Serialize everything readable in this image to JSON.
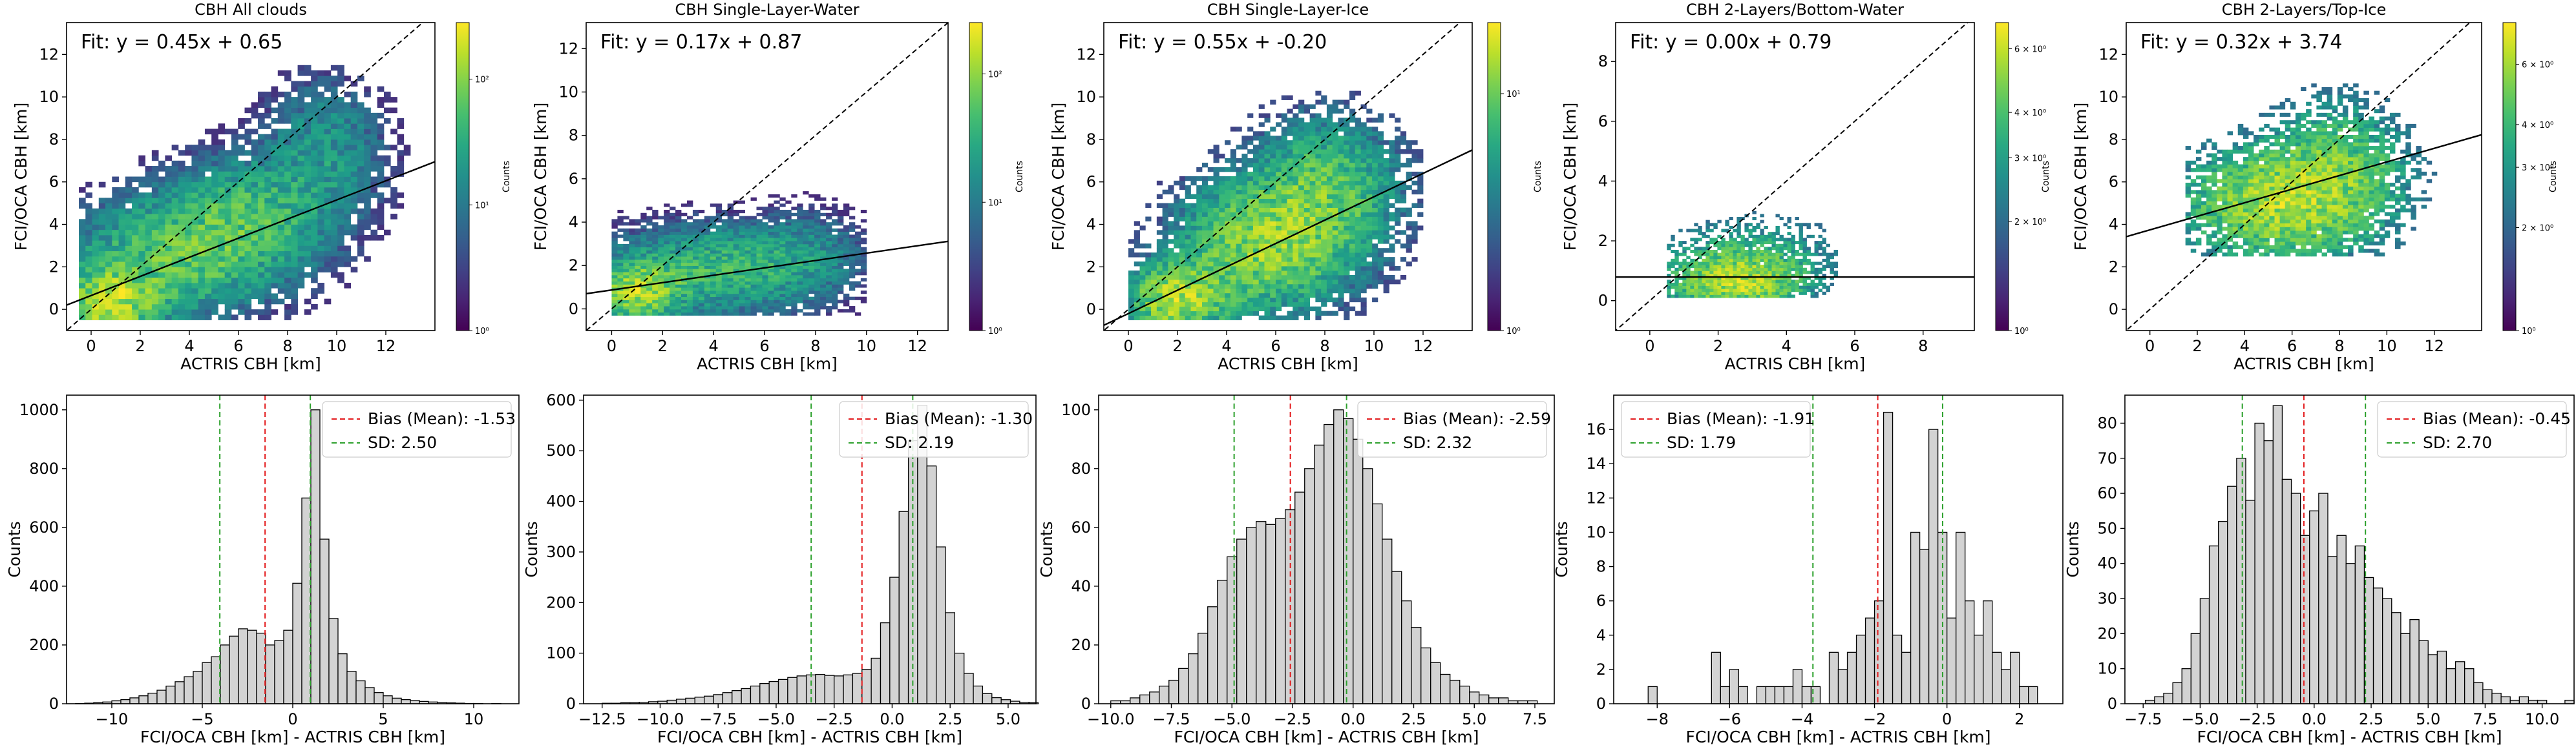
{
  "figure": {
    "background": "#ffffff"
  },
  "chart_data": [
    {
      "type": "heatmap",
      "panel": "top-1",
      "title": "CBH All clouds",
      "xlabel": "ACTRIS CBH [km]",
      "ylabel": "FCI/OCA CBH [km]",
      "xlim": [
        -1,
        14
      ],
      "ylim": [
        -1,
        13.5
      ],
      "xticks": [
        0,
        2,
        4,
        6,
        8,
        10,
        12
      ],
      "yticks": [
        0,
        2,
        4,
        6,
        8,
        10,
        12
      ],
      "fit_text": "Fit: y = 0.45x + 0.65",
      "fit": {
        "slope": 0.45,
        "intercept": 0.65
      },
      "one_to_one_line": true,
      "colorbar": {
        "label": "Counts",
        "scale": "log",
        "ticks": [
          "10⁰",
          "10¹",
          "10²"
        ],
        "log_min": 0,
        "log_max": 2.45,
        "colormap": "viridis"
      },
      "density": {
        "clusters": [
          [
            0.8,
            0.3,
            1.2,
            1.0,
            2.4
          ],
          [
            3.5,
            2.5,
            2.5,
            1.6,
            1.2
          ],
          [
            6.5,
            4.5,
            2.0,
            1.6,
            0.9
          ],
          [
            9.5,
            7.5,
            1.5,
            2.0,
            0.5
          ]
        ],
        "xrange": [
          -0.5,
          13
        ],
        "yrange": [
          -0.5,
          11.5
        ],
        "threshold": 0.012,
        "seed": 11,
        "nx": 50,
        "ny": 48
      }
    },
    {
      "type": "heatmap",
      "panel": "top-2",
      "title": "CBH Single-Layer-Water",
      "xlabel": "ACTRIS CBH [km]",
      "ylabel": "FCI/OCA CBH [km]",
      "xlim": [
        -1,
        13.2
      ],
      "ylim": [
        -1,
        13.2
      ],
      "xticks": [
        0,
        2,
        4,
        6,
        8,
        10,
        12
      ],
      "yticks": [
        0,
        2,
        4,
        6,
        8,
        10,
        12
      ],
      "fit_text": "Fit: y = 0.17x + 0.87",
      "fit": {
        "slope": 0.17,
        "intercept": 0.87
      },
      "one_to_one_line": true,
      "colorbar": {
        "label": "Counts",
        "scale": "log",
        "ticks": [
          "10⁰",
          "10¹",
          "10²"
        ],
        "log_min": 0,
        "log_max": 2.4,
        "colormap": "viridis"
      },
      "density": {
        "clusters": [
          [
            1.0,
            0.8,
            1.0,
            0.8,
            2.4
          ],
          [
            4.0,
            1.8,
            2.5,
            1.2,
            1.1
          ],
          [
            7.5,
            2.5,
            1.5,
            1.2,
            0.4
          ]
        ],
        "xrange": [
          0,
          10
        ],
        "yrange": [
          -0.3,
          6
        ],
        "threshold": 0.01,
        "seed": 23,
        "nx": 44,
        "ny": 44
      }
    },
    {
      "type": "heatmap",
      "panel": "top-3",
      "title": "CBH Single-Layer-Ice",
      "xlabel": "ACTRIS CBH [km]",
      "ylabel": "FCI/OCA CBH [km]",
      "xlim": [
        -1,
        14
      ],
      "ylim": [
        -1,
        13.5
      ],
      "xticks": [
        0,
        2,
        4,
        6,
        8,
        10,
        12
      ],
      "yticks": [
        0,
        2,
        4,
        6,
        8,
        10,
        12
      ],
      "fit_text": "Fit: y = 0.55x + -0.20",
      "fit": {
        "slope": 0.55,
        "intercept": -0.2
      },
      "one_to_one_line": true,
      "colorbar": {
        "label": "Counts",
        "scale": "log",
        "ticks": [
          "10⁰",
          "10¹"
        ],
        "log_min": 0,
        "log_max": 1.3,
        "colormap": "viridis"
      },
      "density": {
        "clusters": [
          [
            2.0,
            0.5,
            1.2,
            1.0,
            1.3
          ],
          [
            5.5,
            3.0,
            2.0,
            1.8,
            1.0
          ],
          [
            8.0,
            5.5,
            1.8,
            2.0,
            0.7
          ]
        ],
        "xrange": [
          0,
          12
        ],
        "yrange": [
          -0.5,
          10.5
        ],
        "threshold": 0.02,
        "seed": 37,
        "nx": 52,
        "ny": 52
      }
    },
    {
      "type": "heatmap",
      "panel": "top-4",
      "title": "CBH 2-Layers/Bottom-Water",
      "xlabel": "ACTRIS CBH [km]",
      "ylabel": "FCI/OCA CBH [km]",
      "xlim": [
        -1,
        9.5
      ],
      "ylim": [
        -1,
        9.3
      ],
      "xticks": [
        0,
        2,
        4,
        6,
        8
      ],
      "yticks": [
        0,
        2,
        4,
        6,
        8
      ],
      "fit_text": "Fit: y = 0.00x + 0.79",
      "fit": {
        "slope": 0.0,
        "intercept": 0.79
      },
      "one_to_one_line": true,
      "colorbar": {
        "label": "Counts",
        "scale": "log",
        "ticks": [
          "10⁰",
          "2 × 10⁰",
          "3 × 10⁰",
          "4 × 10⁰",
          "6 × 10⁰"
        ],
        "tick_values": [
          1,
          2,
          3,
          4,
          6
        ],
        "log_min": 0,
        "log_max": 0.85,
        "colormap": "viridis"
      },
      "density": {
        "clusters": [
          [
            2.5,
            0.6,
            1.2,
            0.6,
            1.5
          ],
          [
            3.0,
            1.5,
            1.5,
            0.8,
            0.5
          ]
        ],
        "xrange": [
          0.5,
          5.5
        ],
        "yrange": [
          0.1,
          4.5
        ],
        "threshold": 0.05,
        "seed": 41,
        "nx": 44,
        "ny": 44
      }
    },
    {
      "type": "heatmap",
      "panel": "top-5",
      "title": "CBH 2-Layers/Top-Ice",
      "xlabel": "ACTRIS CBH [km]",
      "ylabel": "FCI/OCA CBH [km]",
      "xlim": [
        -1,
        14
      ],
      "ylim": [
        -1,
        13.5
      ],
      "xticks": [
        0,
        2,
        4,
        6,
        8,
        10,
        12
      ],
      "yticks": [
        0,
        2,
        4,
        6,
        8,
        10,
        12
      ],
      "fit_text": "Fit: y = 0.32x + 3.74",
      "fit": {
        "slope": 0.32,
        "intercept": 3.74
      },
      "one_to_one_line": true,
      "colorbar": {
        "label": "Counts",
        "scale": "log",
        "ticks": [
          "10⁰",
          "2 × 10⁰",
          "3 × 10⁰",
          "4 × 10⁰",
          "6 × 10⁰"
        ],
        "tick_values": [
          1,
          2,
          3,
          4,
          6
        ],
        "log_min": 0,
        "log_max": 0.9,
        "colormap": "viridis"
      },
      "density": {
        "clusters": [
          [
            5.5,
            5.0,
            2.5,
            1.6,
            1.5
          ],
          [
            8.0,
            7.0,
            1.8,
            1.8,
            0.7
          ]
        ],
        "xrange": [
          1.5,
          13
        ],
        "yrange": [
          2.5,
          11.5
        ],
        "threshold": 0.05,
        "seed": 53,
        "nx": 52,
        "ny": 52
      }
    },
    {
      "type": "bar",
      "panel": "bottom-1",
      "xlabel": "FCI/OCA CBH [km] - ACTRIS CBH [km]",
      "ylabel": "Counts",
      "xlim": [
        -12.5,
        12.5
      ],
      "ylim": [
        0,
        1050
      ],
      "xticks": [
        -10,
        -5,
        0,
        5,
        10
      ],
      "yticks": [
        0,
        200,
        400,
        600,
        800,
        1000
      ],
      "bin_start": -12,
      "bin_width": 0.5,
      "values": [
        1,
        2,
        4,
        6,
        10,
        14,
        20,
        27,
        36,
        46,
        60,
        75,
        92,
        110,
        140,
        160,
        200,
        230,
        255,
        250,
        240,
        200,
        215,
        250,
        410,
        700,
        1000,
        560,
        290,
        170,
        110,
        78,
        55,
        38,
        27,
        19,
        14,
        11,
        8,
        6,
        4,
        3,
        2,
        1,
        1,
        0,
        1
      ],
      "bias": -1.53,
      "sd": 2.5,
      "legend": [
        "Bias (Mean): -1.53",
        "SD: 2.50"
      ]
    },
    {
      "type": "bar",
      "panel": "bottom-2",
      "xlabel": "FCI/OCA CBH [km] - ACTRIS CBH [km]",
      "ylabel": "Counts",
      "xlim": [
        -13.3,
        6.2
      ],
      "ylim": [
        0,
        610
      ],
      "xticks": [
        -12.5,
        -10,
        -7.5,
        -5,
        -2.5,
        0,
        2.5,
        5
      ],
      "yticks": [
        0,
        100,
        200,
        300,
        400,
        500,
        600
      ],
      "bin_start": -12.5,
      "bin_width": 0.4,
      "values": [
        1,
        1,
        2,
        2,
        3,
        4,
        5,
        7,
        9,
        11,
        13,
        15,
        18,
        22,
        26,
        30,
        35,
        40,
        44,
        48,
        52,
        55,
        57,
        58,
        56,
        55,
        57,
        60,
        68,
        90,
        160,
        250,
        380,
        520,
        590,
        470,
        310,
        180,
        100,
        60,
        35,
        20,
        12,
        8,
        5,
        3,
        2
      ],
      "bias": -1.3,
      "sd": 2.19,
      "legend": [
        "Bias (Mean): -1.30",
        "SD: 2.19"
      ]
    },
    {
      "type": "bar",
      "panel": "bottom-3",
      "xlabel": "FCI/OCA CBH [km] - ACTRIS CBH [km]",
      "ylabel": "Counts",
      "xlim": [
        -10.5,
        8.3
      ],
      "ylim": [
        0,
        105
      ],
      "xticks": [
        -10,
        -7.5,
        -5,
        -2.5,
        0,
        2.5,
        5,
        7.5
      ],
      "yticks": [
        0,
        20,
        40,
        60,
        80,
        100
      ],
      "bin_start": -10,
      "bin_width": 0.4,
      "values": [
        1,
        1,
        2,
        3,
        4,
        6,
        8,
        12,
        17,
        24,
        33,
        42,
        50,
        56,
        60,
        62,
        61,
        63,
        66,
        72,
        80,
        88,
        95,
        100,
        97,
        90,
        80,
        68,
        56,
        45,
        35,
        26,
        19,
        14,
        10,
        8,
        6,
        4,
        3,
        2,
        2,
        1,
        1,
        1
      ],
      "bias": -2.59,
      "sd": 2.32,
      "legend": [
        "Bias (Mean): -2.59",
        "SD: 2.32"
      ]
    },
    {
      "type": "bar",
      "panel": "bottom-4",
      "xlabel": "FCI/OCA CBH [km] - ACTRIS CBH [km]",
      "ylabel": "Counts",
      "xlim": [
        -9.2,
        3.2
      ],
      "ylim": [
        0,
        18
      ],
      "xticks": [
        -8,
        -6,
        -4,
        -2,
        0,
        2
      ],
      "yticks": [
        0,
        2,
        4,
        6,
        8,
        10,
        12,
        14,
        16
      ],
      "bin_start": -8.25,
      "bin_width": 0.25,
      "values": [
        1,
        0,
        0,
        0,
        0,
        0,
        0,
        3,
        1,
        2,
        1,
        0,
        1,
        1,
        1,
        1,
        2,
        1,
        1,
        0,
        3,
        2,
        3,
        4,
        5,
        6,
        17,
        4,
        3,
        10,
        9,
        16,
        10,
        5,
        10,
        6,
        4,
        6,
        3,
        2,
        3,
        1,
        1
      ],
      "bias": -1.91,
      "sd": 1.79,
      "legend": [
        "Bias (Mean): -1.91",
        "SD: 1.79"
      ]
    },
    {
      "type": "bar",
      "panel": "bottom-5",
      "xlabel": "FCI/OCA CBH [km] - ACTRIS CBH [km]",
      "ylabel": "Counts",
      "xlim": [
        -8.3,
        11.4
      ],
      "ylim": [
        0,
        88
      ],
      "xticks": [
        -7.5,
        -5,
        -2.5,
        0,
        2.5,
        5,
        7.5,
        10
      ],
      "yticks": [
        0,
        10,
        20,
        30,
        40,
        50,
        60,
        70,
        80
      ],
      "bin_start": -7.4,
      "bin_width": 0.4,
      "values": [
        1,
        2,
        3,
        6,
        10,
        20,
        30,
        45,
        52,
        62,
        70,
        58,
        80,
        75,
        85,
        64,
        60,
        48,
        55,
        60,
        42,
        48,
        40,
        45,
        36,
        33,
        30,
        26,
        20,
        24,
        18,
        14,
        15,
        10,
        12,
        10,
        6,
        4,
        3,
        2,
        1,
        2,
        1,
        1,
        0,
        0,
        1
      ],
      "bias": -0.45,
      "sd": 2.7,
      "legend": [
        "Bias (Mean): -0.45",
        "SD: 2.70"
      ]
    }
  ]
}
